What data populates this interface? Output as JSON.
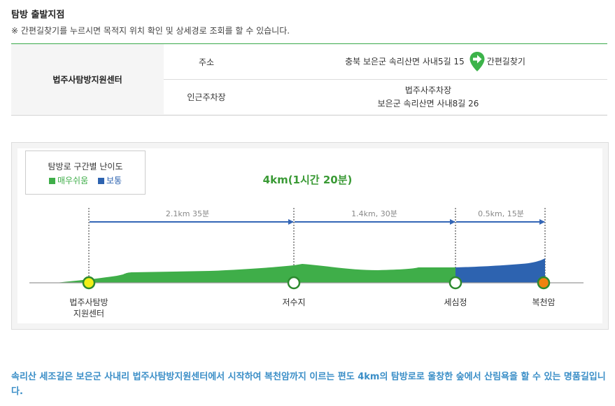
{
  "header": {
    "title": "탐방 출발지점",
    "note": "※ 간편길찾기를 누르시면 목적지 위치 확인 및 상세경로 조회를 할 수 있습니다."
  },
  "start_point": {
    "name": "법주사탐방지원센터",
    "address_label": "주소",
    "address_value": "충북 보은군 속리산면 사내5길 15",
    "nav_button": "간편길찾기",
    "parking_label": "인근주차장",
    "parking_name": "법주사주차장",
    "parking_address": "보은군 속리산면 사내8길 26"
  },
  "legend": {
    "title": "탐방로 구간별 난이도",
    "items": [
      {
        "label": "매우쉬움",
        "color": "#3fae49"
      },
      {
        "label": "보통",
        "color": "#2d63b0"
      }
    ]
  },
  "route": {
    "summary": "4km(1시간 20분)",
    "segments": [
      {
        "label": "2.1km 35분",
        "difficulty": "매우쉬움"
      },
      {
        "label": "1.4km, 30분",
        "difficulty": "매우쉬움"
      },
      {
        "label": "0.5km, 15분",
        "difficulty": "보통"
      }
    ],
    "points": [
      {
        "name_line1": "법주사탐방",
        "name_line2": "지원센터"
      },
      {
        "name_line1": "저수지",
        "name_line2": ""
      },
      {
        "name_line1": "세심정",
        "name_line2": ""
      },
      {
        "name_line1": "복천암",
        "name_line2": ""
      }
    ]
  },
  "description": "속리산 세조길은 보은군 사내리 법주사탐방지원센터에서 시작하여 복천암까지 이르는 편도 4km의 탐방로로 울창한 숲에서 산림욕을 할 수 있는 명품길입니다."
}
